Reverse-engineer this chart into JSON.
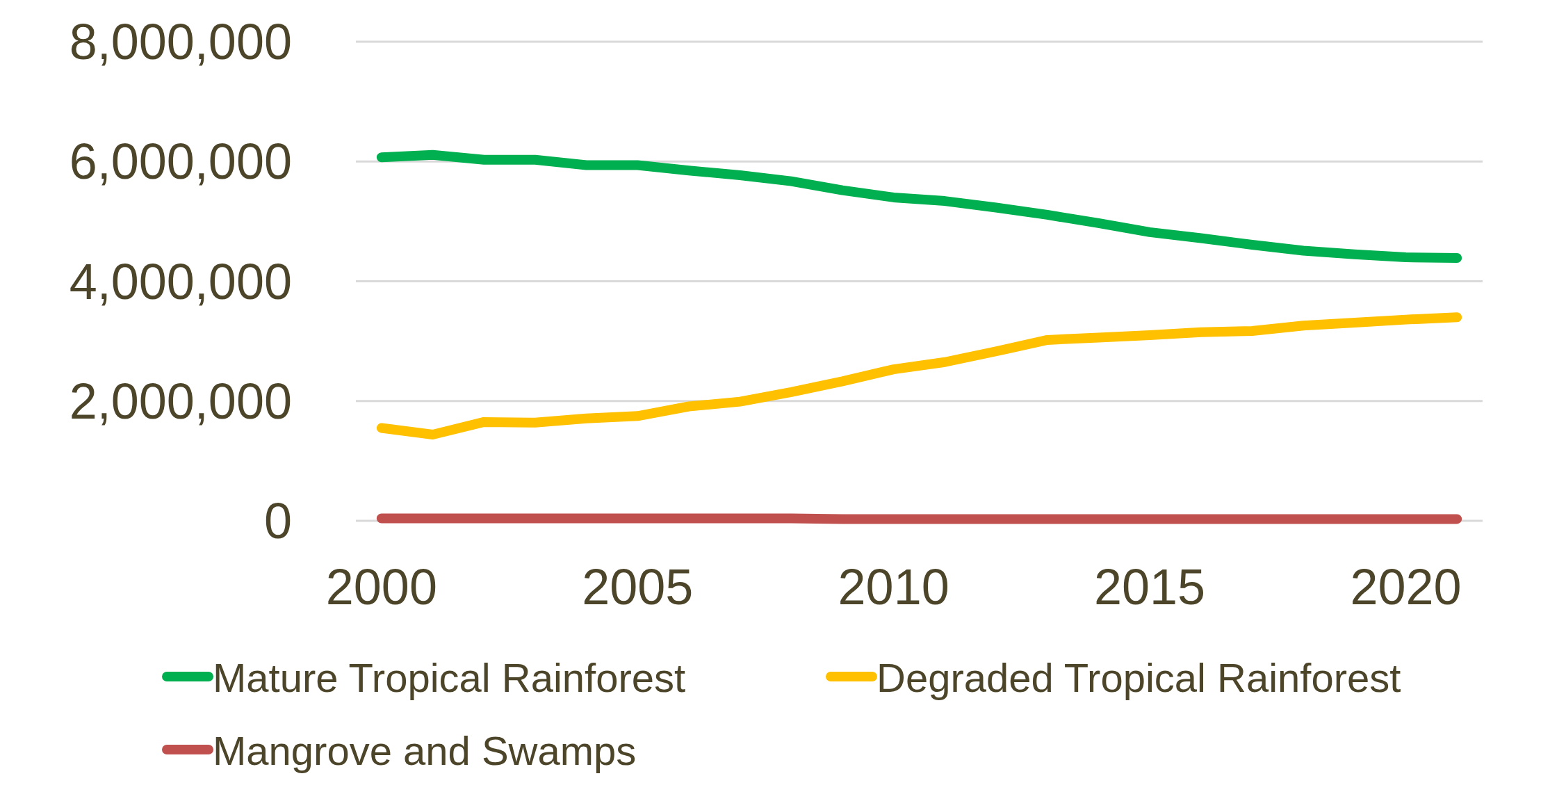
{
  "chart_data": {
    "type": "line",
    "x": [
      2000,
      2001,
      2002,
      2003,
      2004,
      2005,
      2006,
      2007,
      2008,
      2009,
      2010,
      2011,
      2012,
      2013,
      2014,
      2015,
      2016,
      2017,
      2018,
      2019,
      2020,
      2021
    ],
    "series": [
      {
        "name": "Mature Tropical Rainforest",
        "color": "#00b050",
        "values": [
          6070000,
          6110000,
          6030000,
          6030000,
          5940000,
          5940000,
          5850000,
          5770000,
          5670000,
          5520000,
          5400000,
          5340000,
          5230000,
          5110000,
          4970000,
          4820000,
          4720000,
          4610000,
          4510000,
          4450000,
          4400000,
          4390000
        ]
      },
      {
        "name": "Degraded Tropical Rainforest",
        "color": "#ffc000",
        "values": [
          1550000,
          1440000,
          1650000,
          1640000,
          1710000,
          1750000,
          1910000,
          1990000,
          2150000,
          2330000,
          2530000,
          2650000,
          2830000,
          3020000,
          3060000,
          3100000,
          3150000,
          3170000,
          3260000,
          3310000,
          3360000,
          3400000
        ]
      },
      {
        "name": "Mangrove and Swamps",
        "color": "#c0504d",
        "values": [
          40000,
          40000,
          40000,
          40000,
          40000,
          40000,
          40000,
          40000,
          40000,
          30000,
          30000,
          30000,
          30000,
          30000,
          30000,
          30000,
          30000,
          30000,
          30000,
          30000,
          30000,
          30000
        ]
      }
    ],
    "xlim": [
      1999.5,
      2021.5
    ],
    "xticks": [
      2000,
      2005,
      2010,
      2015,
      2020
    ],
    "ylim": [
      0,
      8000000
    ],
    "yticks": [
      0,
      {
        "value": 2000000,
        "label": "2,000,000"
      },
      {
        "value": 4000000,
        "label": "4,000,000"
      },
      {
        "value": 6000000,
        "label": "6,000,000"
      },
      {
        "value": 8000000,
        "label": "8,000,000"
      }
    ],
    "grid": "y",
    "legend": "bottom",
    "marker": "none",
    "line_style": "solid"
  }
}
